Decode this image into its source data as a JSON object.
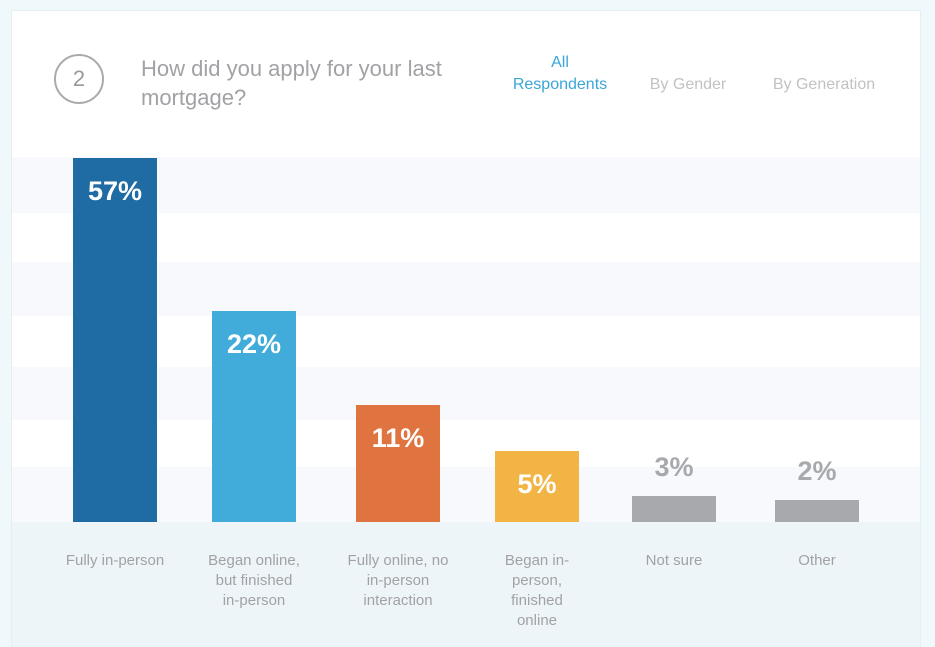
{
  "header": {
    "number": "2",
    "question": "How did you apply for your last mortgage?",
    "tabs": [
      {
        "label": "All Respondents",
        "active": true
      },
      {
        "label": "By Gender",
        "active": false
      },
      {
        "label": "By Generation",
        "active": false
      }
    ]
  },
  "chart_data": {
    "type": "bar",
    "title": "How did you apply for your last mortgage?",
    "categories": [
      "Fully in-person",
      "Began online, but finished in-person",
      "Fully online, no in-person interaction",
      "Began in-person, finished online",
      "Not sure",
      "Other"
    ],
    "values": [
      57,
      22,
      11,
      5,
      3,
      2
    ],
    "labels": [
      "57%",
      "22%",
      "11%",
      "5%",
      "3%",
      "2%"
    ],
    "colors": [
      "#1f6ba3",
      "#41acd9",
      "#e07441",
      "#f2b445",
      "#a8a9ad",
      "#a8a9ad"
    ],
    "ylabel": "",
    "xlabel": "",
    "grid": false
  }
}
